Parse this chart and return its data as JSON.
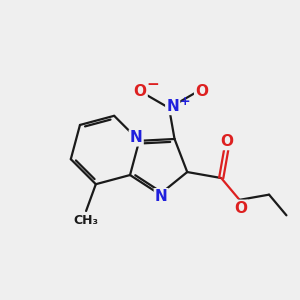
{
  "bg_color": "#efefef",
  "bond_color": "#1a1a1a",
  "n_color": "#2020dd",
  "o_color": "#dd2020",
  "lw": 1.6,
  "fs": 11,
  "fs_s": 9,
  "fs_c": 8,
  "xlim": [
    0,
    10
  ],
  "ylim": [
    0,
    10
  ],
  "tilt": 15
}
